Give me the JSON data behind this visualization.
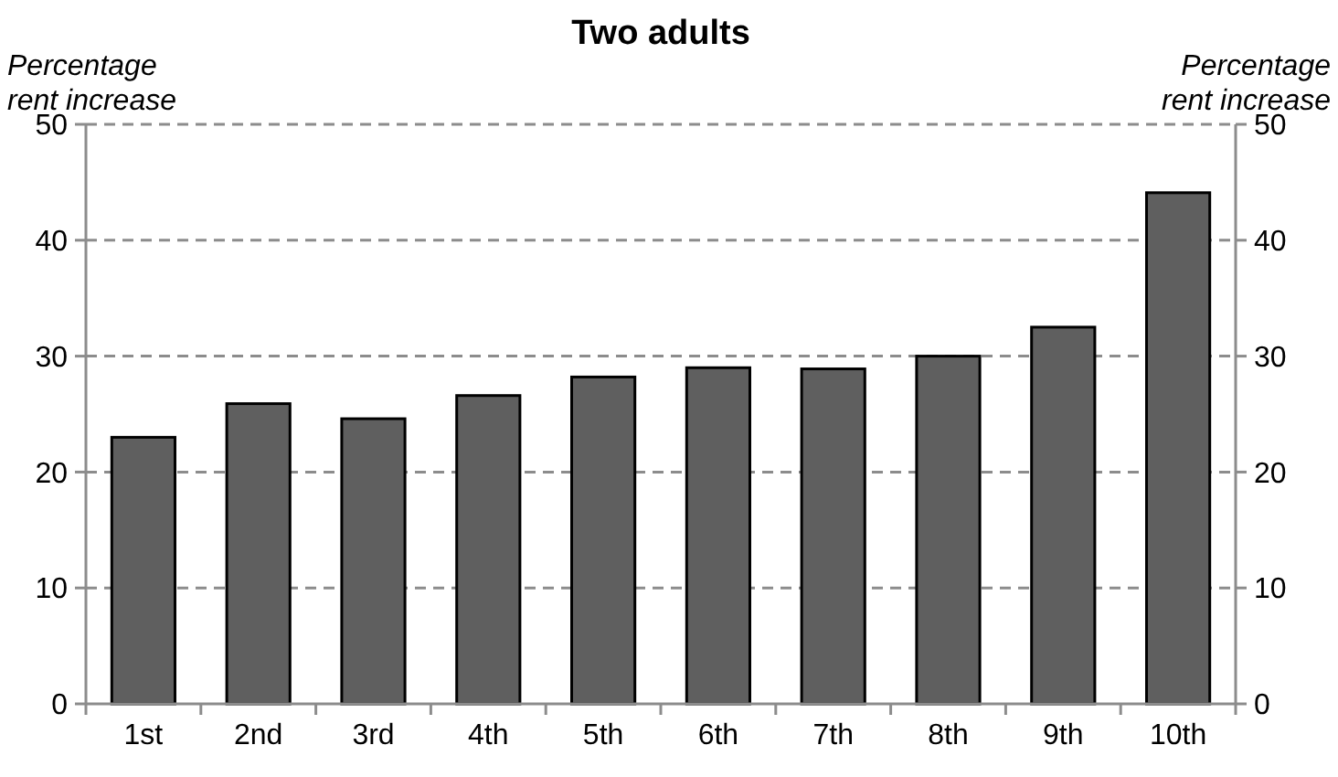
{
  "chart_data": {
    "type": "bar",
    "title": "Two adults",
    "ylabel": "Percentage rent increase",
    "y2label": "Percentage rent increase",
    "categories": [
      "1st",
      "2nd",
      "3rd",
      "4th",
      "5th",
      "6th",
      "7th",
      "8th",
      "9th",
      "10th"
    ],
    "values": [
      23.0,
      25.9,
      24.6,
      26.6,
      28.2,
      29.0,
      28.9,
      30.0,
      32.5,
      44.1
    ],
    "color": "#5f5f5f",
    "ylim": [
      0,
      50
    ],
    "yticks": [
      0,
      10,
      20,
      30,
      40,
      50
    ],
    "y2lim": [
      0,
      50
    ],
    "y2ticks": [
      0,
      10,
      20,
      30,
      40,
      50
    ],
    "grid": "y"
  }
}
